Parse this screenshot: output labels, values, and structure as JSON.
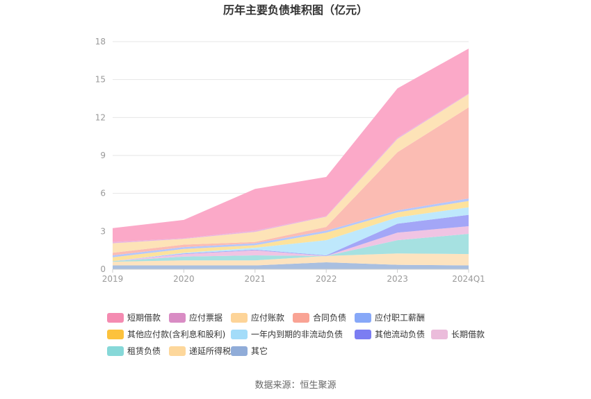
{
  "chart_data": {
    "type": "area",
    "stacked": true,
    "title": "历年主要负债堆积图（亿元）",
    "x": [
      "2019",
      "2020",
      "2021",
      "2022",
      "2023",
      "2024Q1"
    ],
    "y_ticks": [
      "0",
      "3",
      "6",
      "9",
      "12",
      "15",
      "18"
    ],
    "ylim": [
      0,
      18
    ],
    "grid": true,
    "legend_position": "bottom",
    "series": [
      {
        "name": "其它",
        "color": "#a9bfe0",
        "values": [
          0.3,
          0.3,
          0.3,
          0.55,
          0.35,
          0.3
        ]
      },
      {
        "name": "递延所得税负债",
        "color": "#fde3bf",
        "values": [
          0.3,
          0.4,
          0.4,
          0.5,
          0.9,
          0.9
        ]
      },
      {
        "name": "租赁负债",
        "color": "#a6e1e1",
        "values": [
          0.05,
          0.3,
          0.4,
          0.0,
          1.05,
          1.6
        ]
      },
      {
        "name": "长期借款",
        "color": "#f0c4e3",
        "values": [
          0.0,
          0.2,
          0.4,
          0.0,
          0.6,
          0.6
        ]
      },
      {
        "name": "其他流动负债",
        "color": "#a3a6f7",
        "values": [
          0.0,
          0.05,
          0.05,
          0.05,
          0.7,
          0.9
        ]
      },
      {
        "name": "一年内到期的非流动负债",
        "color": "#bee8fc",
        "values": [
          0.0,
          0.05,
          0.15,
          1.2,
          0.5,
          0.6
        ]
      },
      {
        "name": "其他应付款(含利息和股利)",
        "color": "#fde29c",
        "values": [
          0.3,
          0.3,
          0.2,
          0.6,
          0.4,
          0.5
        ]
      },
      {
        "name": "应付职工薪酬",
        "color": "#b4c7fc",
        "values": [
          0.15,
          0.15,
          0.15,
          0.15,
          0.15,
          0.2
        ]
      },
      {
        "name": "合同负债",
        "color": "#fbbcb3",
        "values": [
          0.2,
          0.2,
          0.1,
          0.3,
          4.6,
          7.2
        ]
      },
      {
        "name": "应付账款",
        "color": "#fde3b7",
        "values": [
          0.75,
          0.45,
          0.8,
          0.8,
          1.05,
          1.05
        ]
      },
      {
        "name": "应付票据",
        "color": "#e9b6de",
        "values": [
          0.1,
          0.05,
          0.1,
          0.05,
          0.1,
          0.05
        ]
      },
      {
        "name": "短期借款",
        "color": "#fba9c8",
        "values": [
          1.1,
          1.45,
          3.3,
          3.1,
          3.9,
          3.55
        ]
      }
    ],
    "legend": [
      {
        "name": "短期借款",
        "color": "#f48bb1"
      },
      {
        "name": "应付票据",
        "color": "#d98cc4"
      },
      {
        "name": "应付账款",
        "color": "#fdd498"
      },
      {
        "name": "合同负债",
        "color": "#f9a394"
      },
      {
        "name": "应付职工薪酬",
        "color": "#87a8f8"
      },
      {
        "name": "其他应付款(含利息和股利)",
        "color": "#fcc23d"
      },
      {
        "name": "一年内到期的非流动负债",
        "color": "#a3dcf9"
      },
      {
        "name": "其他流动负债",
        "color": "#7b7df2"
      },
      {
        "name": "长期借款",
        "color": "#ebbcdb"
      },
      {
        "name": "租赁负债",
        "color": "#86d8d8"
      },
      {
        "name": "递延所得税负债",
        "color": "#fdd79b"
      },
      {
        "name": "其它",
        "color": "#90acd8"
      }
    ],
    "source": "数据来源：恒生聚源"
  }
}
